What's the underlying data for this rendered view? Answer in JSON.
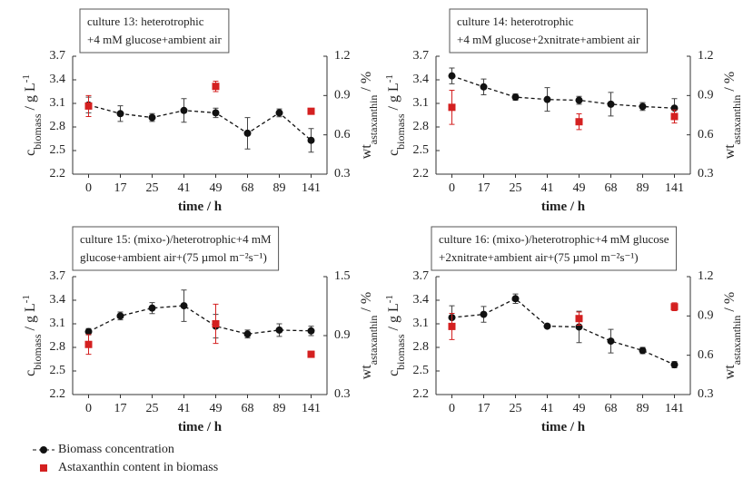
{
  "chart_data": [
    {
      "type": "line",
      "title": [
        "culture 13: heterotrophic",
        "+4 mM glucose+ambient air"
      ],
      "categories": [
        "0",
        "17",
        "25",
        "41",
        "49",
        "68",
        "89",
        "141"
      ],
      "xlabel": "time / h",
      "ylabel": [
        "c",
        "biomass",
        " / g L",
        "-1"
      ],
      "y2label": [
        "wt",
        "astaxanthin",
        " / %"
      ],
      "ylim": [
        2.2,
        3.7
      ],
      "yticks": [
        2.2,
        2.5,
        2.8,
        3.1,
        3.4,
        3.7
      ],
      "y2lim": [
        0.3,
        1.2
      ],
      "y2ticks": [
        0.3,
        0.6,
        0.9,
        1.2
      ],
      "series": [
        {
          "name": "Biomass concentration",
          "color": "#111111",
          "marker": "circle",
          "line": "dashed",
          "values": [
            3.08,
            2.97,
            2.92,
            3.01,
            2.98,
            2.72,
            2.98,
            2.63
          ],
          "errors": [
            0.1,
            0.1,
            0.05,
            0.15,
            0.06,
            0.2,
            0.05,
            0.15
          ]
        },
        {
          "name": "Astaxanthin content in biomass",
          "color": "#d42020",
          "marker": "square",
          "axis": "y2",
          "values": [
            0.82,
            null,
            null,
            null,
            0.97,
            null,
            null,
            0.78
          ],
          "errors": [
            0.08,
            null,
            null,
            null,
            0.04,
            null,
            null,
            0.01
          ]
        }
      ]
    },
    {
      "type": "line",
      "title": [
        "culture 14: heterotrophic",
        "+4 mM glucose+2xnitrate+ambient air"
      ],
      "categories": [
        "0",
        "17",
        "25",
        "41",
        "49",
        "68",
        "89",
        "141"
      ],
      "xlabel": "time / h",
      "ylabel": [
        "c",
        "biomass",
        " / g L",
        "-1"
      ],
      "y2label": [
        "wt",
        "astaxanthin",
        " / %"
      ],
      "ylim": [
        2.2,
        3.7
      ],
      "yticks": [
        2.2,
        2.5,
        2.8,
        3.1,
        3.4,
        3.7
      ],
      "y2lim": [
        0.3,
        1.2
      ],
      "y2ticks": [
        0.3,
        0.6,
        0.9,
        1.2
      ],
      "series": [
        {
          "name": "Biomass concentration",
          "color": "#111111",
          "marker": "circle",
          "line": "dashed",
          "values": [
            3.45,
            3.31,
            3.18,
            3.15,
            3.14,
            3.09,
            3.06,
            3.04
          ],
          "errors": [
            0.1,
            0.1,
            0.04,
            0.15,
            0.05,
            0.15,
            0.05,
            0.12
          ]
        },
        {
          "name": "Astaxanthin content in biomass",
          "color": "#d42020",
          "marker": "square",
          "axis": "y2",
          "values": [
            0.81,
            null,
            null,
            null,
            0.7,
            null,
            null,
            0.74
          ],
          "errors": [
            0.13,
            null,
            null,
            null,
            0.06,
            null,
            null,
            0.05
          ]
        }
      ]
    },
    {
      "type": "line",
      "title": [
        "culture 15: (mixo-)/heterotrophic+4 mM",
        "glucose+ambient air+(75 µmol m⁻²s⁻¹)"
      ],
      "categories": [
        "0",
        "17",
        "25",
        "41",
        "49",
        "68",
        "89",
        "141"
      ],
      "xlabel": "time / h",
      "ylabel": [
        "c",
        "biomass",
        " / g L",
        "-1"
      ],
      "y2label": [
        "wt",
        "astaxanthin",
        " / %"
      ],
      "ylim": [
        2.2,
        3.7
      ],
      "yticks": [
        2.2,
        2.5,
        2.8,
        3.1,
        3.4,
        3.7
      ],
      "y2lim": [
        0.3,
        1.5
      ],
      "y2ticks": [
        0.3,
        0.9,
        1.5
      ],
      "series": [
        {
          "name": "Biomass concentration",
          "color": "#111111",
          "marker": "circle",
          "line": "dashed",
          "values": [
            3.0,
            3.2,
            3.3,
            3.33,
            3.07,
            2.97,
            3.02,
            3.01
          ],
          "errors": [
            0.04,
            0.05,
            0.07,
            0.2,
            0.15,
            0.05,
            0.08,
            0.06
          ]
        },
        {
          "name": "Astaxanthin content in biomass",
          "color": "#d42020",
          "marker": "square",
          "axis": "y2",
          "values": [
            0.81,
            null,
            null,
            null,
            1.02,
            null,
            null,
            0.71
          ],
          "errors": [
            0.1,
            null,
            null,
            null,
            0.2,
            null,
            null,
            0.03
          ]
        }
      ]
    },
    {
      "type": "line",
      "title": [
        "culture 16: (mixo-)/heterotrophic+4 mM glucose",
        "+2xnitrate+ambient air+(75 µmol m⁻²s⁻¹)"
      ],
      "categories": [
        "0",
        "17",
        "25",
        "41",
        "49",
        "68",
        "89",
        "141"
      ],
      "xlabel": "time / h",
      "ylabel": [
        "c",
        "biomass",
        " / g L",
        "-1"
      ],
      "y2label": [
        "wt",
        "astaxanthin",
        " / %"
      ],
      "ylim": [
        2.2,
        3.7
      ],
      "yticks": [
        2.2,
        2.5,
        2.8,
        3.1,
        3.4,
        3.7
      ],
      "y2lim": [
        0.3,
        1.2
      ],
      "y2ticks": [
        0.3,
        0.6,
        0.9,
        1.2
      ],
      "series": [
        {
          "name": "Biomass concentration",
          "color": "#111111",
          "marker": "circle",
          "line": "dashed",
          "values": [
            3.18,
            3.22,
            3.42,
            3.07,
            3.06,
            2.88,
            2.76,
            2.58
          ],
          "errors": [
            0.15,
            0.1,
            0.06,
            0.01,
            0.2,
            0.15,
            0.04,
            0.04
          ]
        },
        {
          "name": "Astaxanthin content in biomass",
          "color": "#d42020",
          "marker": "square",
          "axis": "y2",
          "values": [
            0.82,
            null,
            null,
            null,
            0.88,
            null,
            null,
            0.97
          ],
          "errors": [
            0.1,
            null,
            null,
            null,
            0.05,
            null,
            null,
            0.03
          ]
        }
      ]
    }
  ]
}
